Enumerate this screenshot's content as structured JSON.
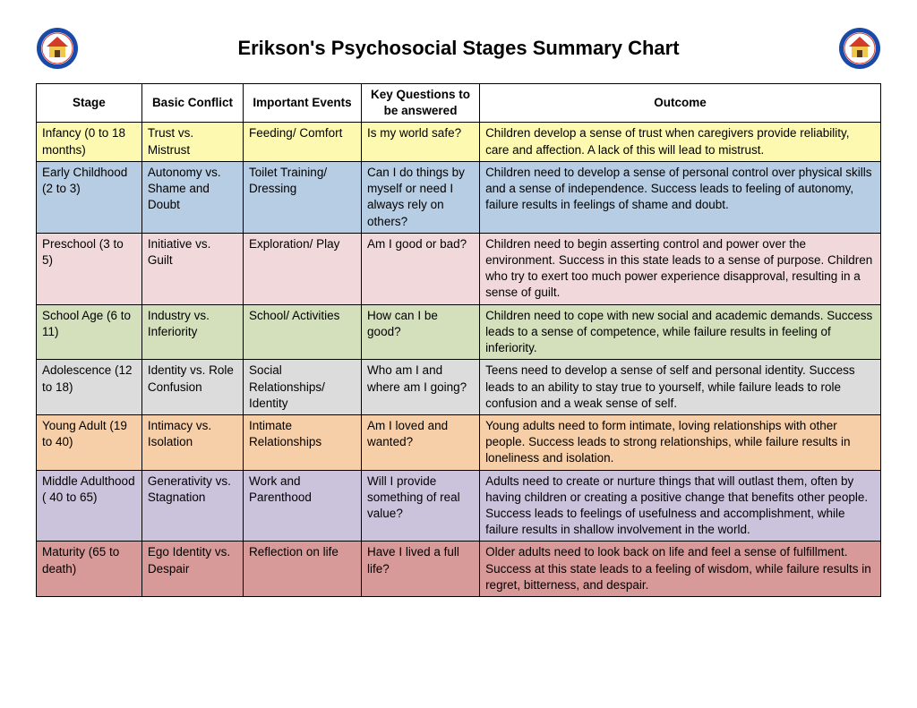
{
  "title": "Erikson's Psychosocial Stages Summary Chart",
  "columns": [
    "Stage",
    "Basic Conflict",
    "Important Events",
    "Key Questions to be answered",
    "Outcome"
  ],
  "column_classes": [
    "col-stage",
    "col-conflict",
    "col-events",
    "col-questions",
    "col-outcome"
  ],
  "row_colors": [
    "#fdf9b1",
    "#b7cde4",
    "#f1d9db",
    "#d3e0bb",
    "#dddcdc",
    "#f6cfa8",
    "#cbc2dc",
    "#d89a99"
  ],
  "rows": [
    [
      "Infancy (0 to 18 months)",
      "Trust vs. Mistrust",
      "Feeding/ Comfort",
      "Is my world safe?",
      "Children develop a sense of trust when caregivers provide reliability, care and affection. A lack of this will lead to mistrust."
    ],
    [
      "Early Childhood (2 to 3)",
      "Autonomy vs. Shame and Doubt",
      "Toilet Training/ Dressing",
      "Can I do things by myself or need I always rely on others?",
      "Children need to develop a sense of personal control over physical skills and a sense of independence. Success leads to feeling of autonomy, failure results in feelings of shame and doubt."
    ],
    [
      "Preschool (3 to 5)",
      "Initiative vs. Guilt",
      "Exploration/ Play",
      "Am I good or bad?",
      "Children need to begin asserting control and power over the environment. Success in this state leads to a sense of purpose. Children who try to exert too much power experience disapproval, resulting in a sense of guilt."
    ],
    [
      "School Age (6 to 11)",
      "Industry vs. Inferiority",
      "School/ Activities",
      "How can I be good?",
      "Children need to cope with new social and academic demands. Success leads to a sense of competence, while failure results in feeling of inferiority."
    ],
    [
      "Adolescence (12 to 18)",
      "Identity vs. Role Confusion",
      "Social Relationships/ Identity",
      "Who am I and where am I going?",
      "Teens need to develop a sense of self and personal identity. Success leads to an ability to stay true to yourself, while failure leads to role confusion and a weak sense of self."
    ],
    [
      "Young Adult (19 to 40)",
      "Intimacy vs. Isolation",
      "Intimate Relationships",
      "Am I loved and wanted?",
      "Young adults need to form intimate, loving relationships with other people. Success leads to strong relationships, while failure results in loneliness and isolation."
    ],
    [
      "Middle Adulthood ( 40 to 65)",
      "Generativity vs. Stagnation",
      "Work and Parenthood",
      "Will I provide something of real value?",
      "Adults need to create or nurture things that will outlast them, often by having children or creating a positive change that benefits other people. Success leads to feelings of usefulness and accomplishment, while failure results in shallow involvement in the world."
    ],
    [
      "Maturity (65 to death)",
      "Ego Identity vs. Despair",
      "Reflection on life",
      "Have I lived a full life?",
      "Older adults need to look back on life and feel a sense of fulfillment. Success at this state leads to a feeling of wisdom, while failure results in regret, bitterness, and despair."
    ]
  ],
  "logo": {
    "outer_ring": "#1a4aa8",
    "inner_bg": "#ffffff",
    "house_roof": "#d43a2a",
    "house_body": "#f2c84b"
  }
}
